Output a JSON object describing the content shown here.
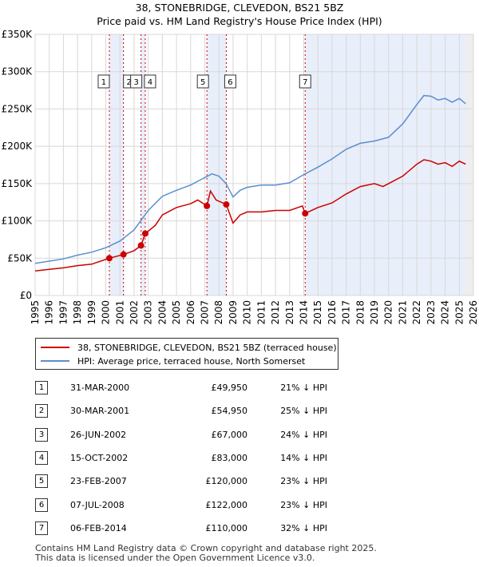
{
  "chart_data": {
    "type": "line",
    "title": "38, STONEBRIDGE, CLEVEDON, BS21 5BZ",
    "subtitle": "Price paid vs. HM Land Registry's House Price Index (HPI)",
    "xlim": [
      1995,
      2026
    ],
    "ylim": [
      0,
      350000
    ],
    "x_ticks": [
      "1995",
      "1996",
      "1997",
      "1998",
      "1999",
      "2000",
      "2001",
      "2002",
      "2003",
      "2004",
      "2005",
      "2006",
      "2007",
      "2008",
      "2009",
      "2010",
      "2011",
      "2012",
      "2013",
      "2014",
      "2015",
      "2016",
      "2017",
      "2018",
      "2019",
      "2020",
      "2021",
      "2022",
      "2023",
      "2024",
      "2025",
      "2026"
    ],
    "y_ticks": [
      {
        "value": 0,
        "label": "£0"
      },
      {
        "value": 50000,
        "label": "£50K"
      },
      {
        "value": 100000,
        "label": "£100K"
      },
      {
        "value": 150000,
        "label": "£150K"
      },
      {
        "value": 200000,
        "label": "£200K"
      },
      {
        "value": 250000,
        "label": "£250K"
      },
      {
        "value": 300000,
        "label": "£300K"
      },
      {
        "value": 350000,
        "label": "£350K"
      }
    ],
    "shaded_periods": [
      [
        2000.25,
        2001.25
      ],
      [
        2002.49,
        2002.79
      ],
      [
        2007.15,
        2008.52
      ],
      [
        2014.1,
        2025.45
      ]
    ],
    "forecast_start": 2025.45,
    "series": [
      {
        "name": "38, STONEBRIDGE, CLEVEDON, BS21 5BZ (terraced house)",
        "color": "#cc0000",
        "x": [
          1995.0,
          1996.0,
          1997.0,
          1998.0,
          1999.0,
          2000.25,
          2001.25,
          2002.0,
          2002.49,
          2002.79,
          2003.5,
          2004.0,
          2005.0,
          2006.0,
          2006.5,
          2007.15,
          2007.4,
          2007.8,
          2008.52,
          2009.0,
          2009.5,
          2010.0,
          2011.0,
          2012.0,
          2013.0,
          2013.9,
          2014.1,
          2015.0,
          2016.0,
          2017.0,
          2018.0,
          2019.0,
          2019.6,
          2020.0,
          2021.0,
          2022.0,
          2022.5,
          2023.0,
          2023.5,
          2024.0,
          2024.5,
          2025.0,
          2025.45
        ],
        "y": [
          33000,
          35000,
          37000,
          40000,
          42000,
          49950,
          54950,
          60000,
          67000,
          83000,
          94000,
          108000,
          118000,
          123000,
          128000,
          120000,
          140000,
          128000,
          122000,
          97000,
          108000,
          112000,
          112000,
          114000,
          114000,
          120000,
          110000,
          118000,
          124000,
          136000,
          146000,
          150000,
          146000,
          150000,
          160000,
          176000,
          182000,
          180000,
          176000,
          178000,
          173000,
          180000,
          176000
        ]
      },
      {
        "name": "HPI: Average price, terraced house, North Somerset",
        "color": "#5a8fd0",
        "x": [
          1995.0,
          1996.0,
          1997.0,
          1998.0,
          1999.0,
          2000.0,
          2001.0,
          2002.0,
          2003.0,
          2004.0,
          2005.0,
          2006.0,
          2007.0,
          2007.5,
          2008.0,
          2008.5,
          2009.0,
          2009.5,
          2010.0,
          2011.0,
          2012.0,
          2013.0,
          2014.0,
          2015.0,
          2016.0,
          2017.0,
          2018.0,
          2019.0,
          2020.0,
          2021.0,
          2022.0,
          2022.5,
          2023.0,
          2023.5,
          2024.0,
          2024.5,
          2025.0,
          2025.45
        ],
        "y": [
          43000,
          46000,
          49000,
          54000,
          58000,
          64000,
          73000,
          88000,
          114000,
          133000,
          141000,
          148000,
          158000,
          163000,
          160000,
          150000,
          132000,
          141000,
          145000,
          148000,
          148000,
          151000,
          162000,
          172000,
          183000,
          196000,
          204000,
          207000,
          212000,
          230000,
          256000,
          268000,
          267000,
          262000,
          264000,
          259000,
          264000,
          257000
        ]
      }
    ],
    "sale_markers": [
      {
        "n": "1",
        "x": 2000.25,
        "y": 49950
      },
      {
        "n": "2",
        "x": 2001.25,
        "y": 54950
      },
      {
        "n": "3",
        "x": 2002.49,
        "y": 67000
      },
      {
        "n": "4",
        "x": 2002.79,
        "y": 83000
      },
      {
        "n": "5",
        "x": 2007.15,
        "y": 120000
      },
      {
        "n": "6",
        "x": 2008.52,
        "y": 122000
      },
      {
        "n": "7",
        "x": 2014.1,
        "y": 110000
      }
    ]
  },
  "legend": {
    "property_label": "38, STONEBRIDGE, CLEVEDON, BS21 5BZ (terraced house)",
    "hpi_label": "HPI: Average price, terraced house, North Somerset",
    "property_color": "#cc0000",
    "hpi_color": "#5a8fd0"
  },
  "sales": [
    {
      "n": "1",
      "date": "31-MAR-2000",
      "price": "£49,950",
      "hpi": "21% ↓ HPI"
    },
    {
      "n": "2",
      "date": "30-MAR-2001",
      "price": "£54,950",
      "hpi": "25% ↓ HPI"
    },
    {
      "n": "3",
      "date": "26-JUN-2002",
      "price": "£67,000",
      "hpi": "24% ↓ HPI"
    },
    {
      "n": "4",
      "date": "15-OCT-2002",
      "price": "£83,000",
      "hpi": "14% ↓ HPI"
    },
    {
      "n": "5",
      "date": "23-FEB-2007",
      "price": "£120,000",
      "hpi": "23% ↓ HPI"
    },
    {
      "n": "6",
      "date": "07-JUL-2008",
      "price": "£122,000",
      "hpi": "23% ↓ HPI"
    },
    {
      "n": "7",
      "date": "06-FEB-2014",
      "price": "£110,000",
      "hpi": "32% ↓ HPI"
    }
  ],
  "footer": {
    "line1": "Contains HM Land Registry data © Crown copyright and database right 2025.",
    "line2": "This data is licensed under the Open Government Licence v3.0."
  }
}
